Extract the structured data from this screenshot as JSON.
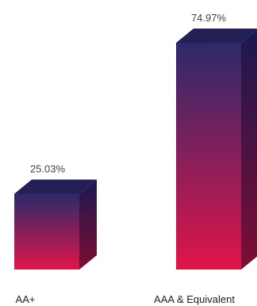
{
  "chart_data": {
    "type": "bar",
    "categories": [
      "AA+",
      "AAA & Equivalent"
    ],
    "values": [
      25.03,
      74.97
    ],
    "data_labels": [
      "25.03%",
      "74.97%"
    ],
    "unit": "%",
    "ylim": [
      0,
      80
    ],
    "grid": false,
    "legend": "none",
    "colors": {
      "bar_top": "#2b2a6b",
      "bar_bottom": "#e0154a",
      "side_top": "#1a1850",
      "side_bottom": "#7e0d34",
      "cap": "#222055"
    }
  }
}
